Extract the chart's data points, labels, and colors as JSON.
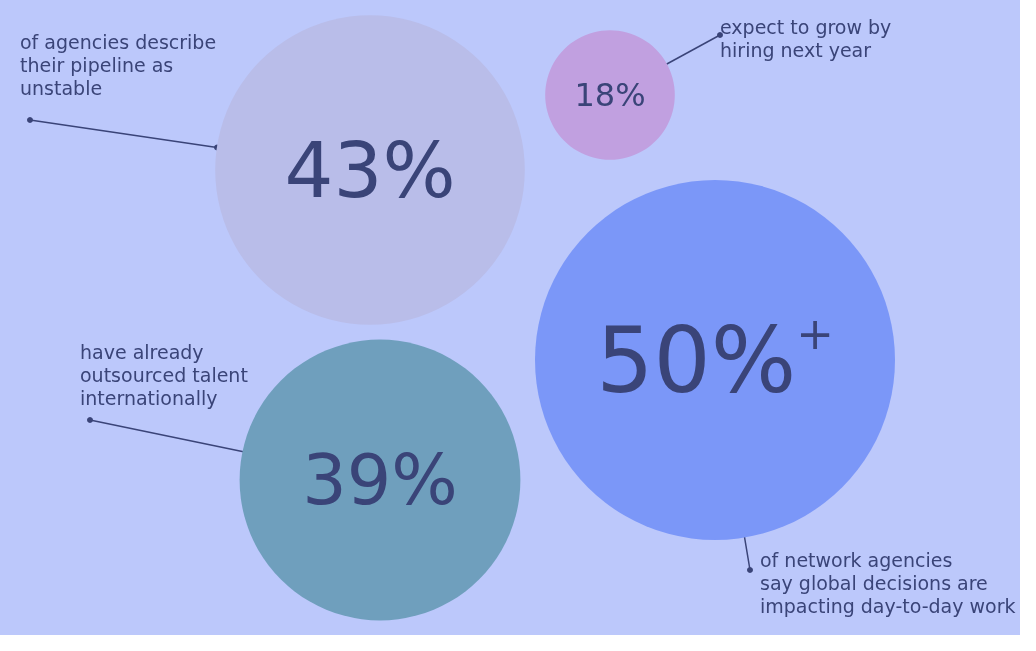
{
  "chart_data": {
    "type": "other",
    "categories": [
      "of agencies describe\ntheir pipeline as\nunstable",
      "expect to grow by\nhiring next year",
      "have already\noutsourced talent\ninternationally",
      "of network agencies\nsay global decisions are\nimpacting day-to-day work"
    ],
    "values": [
      43,
      18,
      39,
      50
    ],
    "value_labels": [
      "43%",
      "18%",
      "39%",
      "50%$^{+}$"
    ],
    "colors": [
      "#b9bde9",
      "#c1a0e0",
      "#6f9fbd",
      "#7b97f8"
    ]
  }
}
